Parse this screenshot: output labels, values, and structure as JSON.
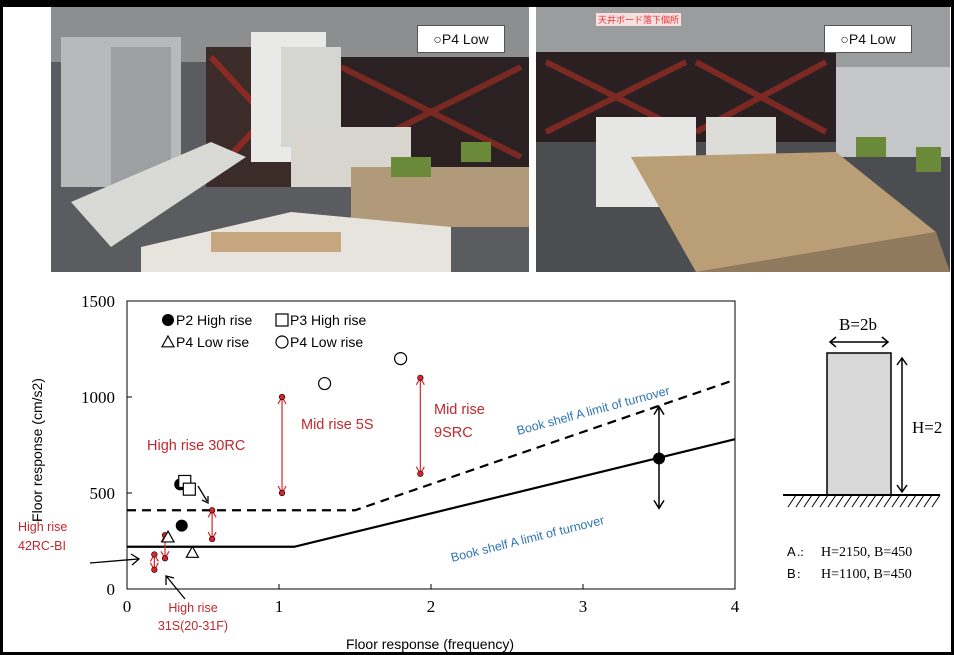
{
  "photos": [
    {
      "label": "○P4 Low"
    },
    {
      "label": "○P4 Low",
      "sign": "天井ボード落下個所"
    }
  ],
  "chart_data": {
    "type": "scatter",
    "xlabel": "Floor response (frequency)",
    "ylabel": "Floor response (cm/s2)",
    "xlim": [
      0,
      4
    ],
    "ylim": [
      0,
      1500
    ],
    "xticks": [
      "0",
      "1",
      "2",
      "3",
      "4"
    ],
    "yticks": [
      "0",
      "500",
      "1000",
      "1500"
    ],
    "grid": false,
    "legend": [
      {
        "marker": "filled-circle",
        "label": "P2 High rise"
      },
      {
        "marker": "open-square",
        "label": "P3 High rise"
      },
      {
        "marker": "open-triangle",
        "label": "P4 Low rise"
      },
      {
        "marker": "open-circle",
        "label": "P4 Low rise"
      }
    ],
    "series": [
      {
        "name": "P2 High rise",
        "marker": "filled-circle",
        "points": [
          [
            0.35,
            545
          ],
          [
            0.36,
            330
          ],
          [
            3.5,
            680
          ]
        ]
      },
      {
        "name": "P3 High rise",
        "marker": "open-square",
        "points": [
          [
            0.38,
            560
          ],
          [
            0.41,
            520
          ]
        ]
      },
      {
        "name": "P4 Low rise",
        "marker": "open-triangle",
        "points": [
          [
            0.27,
            270
          ],
          [
            0.43,
            190
          ]
        ]
      },
      {
        "name": "P4 Low rise",
        "marker": "open-circle",
        "points": [
          [
            1.3,
            1070
          ],
          [
            1.8,
            1200
          ]
        ]
      }
    ],
    "ranges": [
      {
        "x": 0.18,
        "ymin": 100,
        "ymax": 180
      },
      {
        "x": 0.25,
        "ymin": 160,
        "ymax": 280
      },
      {
        "x": 0.56,
        "ymin": 260,
        "ymax": 410
      },
      {
        "x": 1.02,
        "ymin": 500,
        "ymax": 1000
      },
      {
        "x": 1.93,
        "ymin": 600,
        "ymax": 1100
      }
    ],
    "limit_lines": [
      {
        "label": "Book shelf A limit of turnover",
        "style": "dashed",
        "points": [
          [
            0,
            410
          ],
          [
            1.5,
            410
          ],
          [
            4,
            1090
          ]
        ]
      },
      {
        "label": "Book shelf A limit of turnover",
        "style": "solid",
        "points": [
          [
            0,
            220
          ],
          [
            1.1,
            220
          ],
          [
            4,
            780
          ]
        ]
      }
    ],
    "annotations": [
      {
        "text": "High rise 30RC"
      },
      {
        "text": "Mid rise 5S"
      },
      {
        "text": "Mid rise"
      },
      {
        "text": "9SRC"
      },
      {
        "text": "High rise"
      },
      {
        "text": "42RC-BI"
      },
      {
        "text": "High rise"
      },
      {
        "text": "31S(20-31F)"
      }
    ],
    "colors": {
      "annotation": "#c0282d",
      "limit_label": "#2e75b6",
      "arrow": "#d9252a"
    }
  },
  "shelf_diagram": {
    "width_label": "B=2b",
    "height_label": "H=2",
    "dims": [
      {
        "key": "A",
        "sep": " .:",
        "text": "H=2150, B=450"
      },
      {
        "key": "B",
        "sep": " :",
        "text": "H=1100, B=450"
      }
    ]
  }
}
